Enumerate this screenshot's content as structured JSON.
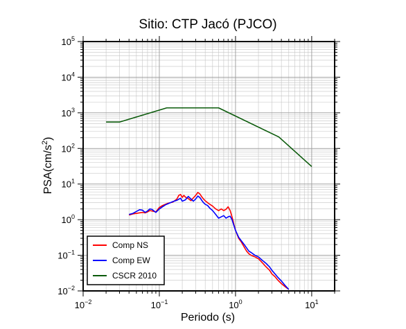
{
  "chart_data": {
    "type": "line",
    "title": "Sitio: CTP Jacó (PJCO)",
    "xlabel": "Periodo (s)",
    "ylabel_base": "PSA(cm/s",
    "ylabel_sup": "2",
    "ylabel_end": ")",
    "x_scale": "log",
    "y_scale": "log",
    "xlim": [
      0.01,
      20
    ],
    "ylim": [
      0.01,
      100000
    ],
    "grid": true,
    "legend_position": "bottom-left",
    "x_ticks": [
      {
        "value": 0.01,
        "base": "10",
        "exp": "−2"
      },
      {
        "value": 0.1,
        "base": "10",
        "exp": "−1"
      },
      {
        "value": 1,
        "base": "10",
        "exp": "0"
      },
      {
        "value": 10,
        "base": "10",
        "exp": "1"
      }
    ],
    "y_ticks": [
      {
        "value": 0.01,
        "base": "10",
        "exp": "−2"
      },
      {
        "value": 0.1,
        "base": "10",
        "exp": "−1"
      },
      {
        "value": 1,
        "base": "10",
        "exp": "0"
      },
      {
        "value": 10,
        "base": "10",
        "exp": "1"
      },
      {
        "value": 100,
        "base": "10",
        "exp": "2"
      },
      {
        "value": 1000,
        "base": "10",
        "exp": "3"
      },
      {
        "value": 10000,
        "base": "10",
        "exp": "4"
      },
      {
        "value": 100000,
        "base": "10",
        "exp": "5"
      }
    ],
    "series": [
      {
        "name": "Comp NS",
        "color": "#ff0000",
        "points": [
          [
            0.04,
            1.35
          ],
          [
            0.045,
            1.45
          ],
          [
            0.05,
            1.5
          ],
          [
            0.055,
            1.55
          ],
          [
            0.06,
            1.6
          ],
          [
            0.065,
            1.55
          ],
          [
            0.07,
            1.65
          ],
          [
            0.075,
            1.8
          ],
          [
            0.08,
            1.75
          ],
          [
            0.09,
            1.65
          ],
          [
            0.1,
            2.2
          ],
          [
            0.11,
            2.5
          ],
          [
            0.12,
            2.7
          ],
          [
            0.13,
            2.9
          ],
          [
            0.15,
            3.1
          ],
          [
            0.17,
            3.8
          ],
          [
            0.18,
            4.8
          ],
          [
            0.19,
            5.1
          ],
          [
            0.2,
            4.2
          ],
          [
            0.21,
            4.8
          ],
          [
            0.22,
            4.3
          ],
          [
            0.24,
            3.9
          ],
          [
            0.26,
            3.4
          ],
          [
            0.28,
            4.1
          ],
          [
            0.3,
            4.8
          ],
          [
            0.32,
            5.8
          ],
          [
            0.34,
            5.3
          ],
          [
            0.36,
            4.4
          ],
          [
            0.38,
            3.8
          ],
          [
            0.4,
            3.4
          ],
          [
            0.43,
            3.0
          ],
          [
            0.46,
            2.7
          ],
          [
            0.5,
            2.4
          ],
          [
            0.55,
            2.0
          ],
          [
            0.6,
            1.8
          ],
          [
            0.65,
            2.0
          ],
          [
            0.7,
            1.8
          ],
          [
            0.75,
            1.95
          ],
          [
            0.8,
            2.3
          ],
          [
            0.85,
            1.8
          ],
          [
            0.9,
            1.2
          ],
          [
            0.95,
            0.75
          ],
          [
            1.0,
            0.5
          ],
          [
            1.1,
            0.3
          ],
          [
            1.2,
            0.23
          ],
          [
            1.3,
            0.17
          ],
          [
            1.4,
            0.13
          ],
          [
            1.5,
            0.11
          ],
          [
            1.6,
            0.1
          ],
          [
            1.8,
            0.09
          ],
          [
            2.0,
            0.08
          ],
          [
            2.2,
            0.065
          ],
          [
            2.5,
            0.048
          ],
          [
            2.8,
            0.038
          ],
          [
            3.0,
            0.03
          ],
          [
            3.3,
            0.025
          ],
          [
            3.6,
            0.02
          ],
          [
            4.0,
            0.016
          ],
          [
            4.5,
            0.013
          ],
          [
            5.0,
            0.011
          ]
        ]
      },
      {
        "name": "Comp EW",
        "color": "#0000ff",
        "points": [
          [
            0.04,
            1.4
          ],
          [
            0.045,
            1.5
          ],
          [
            0.05,
            1.7
          ],
          [
            0.055,
            1.9
          ],
          [
            0.06,
            1.85
          ],
          [
            0.065,
            1.6
          ],
          [
            0.07,
            1.75
          ],
          [
            0.075,
            2.0
          ],
          [
            0.08,
            1.95
          ],
          [
            0.09,
            1.6
          ],
          [
            0.1,
            2.0
          ],
          [
            0.11,
            2.3
          ],
          [
            0.12,
            2.6
          ],
          [
            0.13,
            2.8
          ],
          [
            0.15,
            3.2
          ],
          [
            0.17,
            3.5
          ],
          [
            0.19,
            4.0
          ],
          [
            0.2,
            3.3
          ],
          [
            0.22,
            3.6
          ],
          [
            0.24,
            4.5
          ],
          [
            0.26,
            3.8
          ],
          [
            0.28,
            3.3
          ],
          [
            0.3,
            3.8
          ],
          [
            0.32,
            4.6
          ],
          [
            0.34,
            4.2
          ],
          [
            0.36,
            3.5
          ],
          [
            0.38,
            3.0
          ],
          [
            0.4,
            2.7
          ],
          [
            0.43,
            2.5
          ],
          [
            0.46,
            2.1
          ],
          [
            0.5,
            1.8
          ],
          [
            0.55,
            1.4
          ],
          [
            0.6,
            1.1
          ],
          [
            0.65,
            1.2
          ],
          [
            0.7,
            1.3
          ],
          [
            0.75,
            1.1
          ],
          [
            0.8,
            1.2
          ],
          [
            0.85,
            1.25
          ],
          [
            0.9,
            1.0
          ],
          [
            0.95,
            0.7
          ],
          [
            1.0,
            0.5
          ],
          [
            1.1,
            0.32
          ],
          [
            1.2,
            0.25
          ],
          [
            1.3,
            0.2
          ],
          [
            1.4,
            0.16
          ],
          [
            1.5,
            0.13
          ],
          [
            1.6,
            0.12
          ],
          [
            1.8,
            0.1
          ],
          [
            2.0,
            0.09
          ],
          [
            2.2,
            0.075
          ],
          [
            2.5,
            0.06
          ],
          [
            2.8,
            0.047
          ],
          [
            3.0,
            0.038
          ],
          [
            3.3,
            0.03
          ],
          [
            3.6,
            0.024
          ],
          [
            4.0,
            0.019
          ],
          [
            4.5,
            0.014
          ],
          [
            5.0,
            0.011
          ]
        ]
      },
      {
        "name": "CSCR 2010",
        "color": "#0a5a0a",
        "points": [
          [
            0.02,
            550
          ],
          [
            0.03,
            550
          ],
          [
            0.125,
            1375
          ],
          [
            0.6,
            1375
          ],
          [
            3.7,
            210
          ],
          [
            10.0,
            31
          ]
        ]
      }
    ]
  }
}
